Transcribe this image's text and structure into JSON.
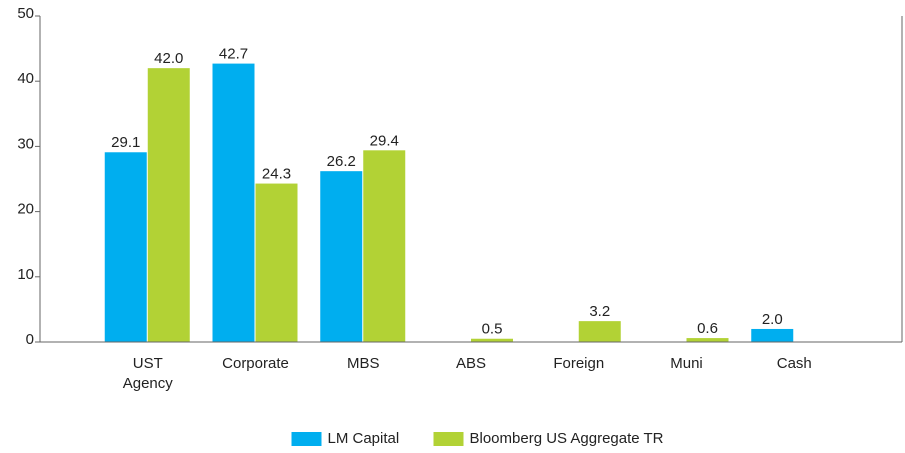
{
  "chart_data": {
    "type": "bar",
    "categories": [
      "UST Agency",
      "Corporate",
      "MBS",
      "ABS",
      "Foreign",
      "Muni",
      "Cash"
    ],
    "series": [
      {
        "name": "LM Capital",
        "color": "#00aeef",
        "values": [
          29.1,
          42.7,
          26.2,
          null,
          null,
          null,
          2.0
        ],
        "value_labels": [
          "29.1",
          "42.7",
          "26.2",
          null,
          null,
          null,
          "2.0"
        ]
      },
      {
        "name": "Bloomberg US Aggregate TR",
        "color": "#b2d235",
        "values": [
          42.0,
          24.3,
          29.4,
          0.5,
          3.2,
          0.6,
          null
        ],
        "value_labels": [
          "42.0",
          "24.3",
          "29.4",
          "0.5",
          "3.2",
          "0.6",
          null
        ]
      }
    ],
    "ylim": [
      0,
      50
    ],
    "yticks": [
      0,
      10,
      20,
      30,
      40,
      50
    ],
    "legend": "bottom"
  }
}
